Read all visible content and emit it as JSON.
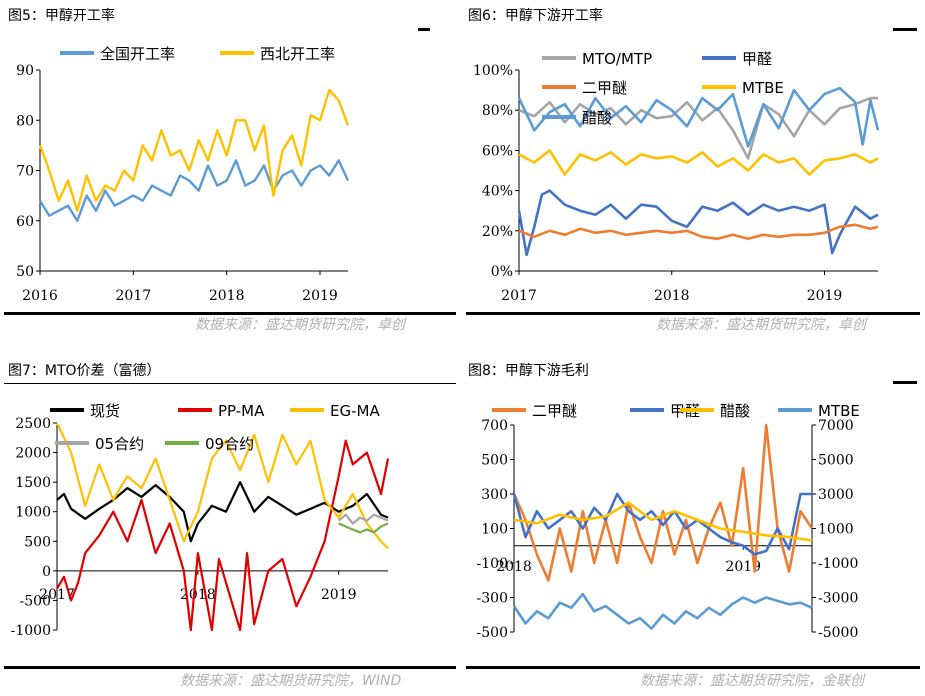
{
  "titles": {
    "fig5": "图5：甲醇开工率",
    "fig6": "图6：甲醇下游开工率",
    "fig7": "图7：MTO价差（富德）",
    "fig8": "图8：甲醇下游毛利"
  },
  "sources": {
    "fig5": "数据来源：盛达期货研究院，卓创",
    "fig6": "数据来源：盛达期货研究院，卓创",
    "fig7": "数据来源：盛达期货研究院，WIND",
    "fig8": "数据来源：盛达期货研究院，金联创"
  },
  "chart_data": [
    {
      "id": "fig5",
      "type": "line",
      "title": "图5：甲醇开工率",
      "x_ticks": [
        "2016",
        "2017",
        "2018",
        "2019"
      ],
      "x_range": [
        2016,
        2019.3
      ],
      "ylim": [
        50,
        90
      ],
      "y_ticks": [
        50,
        60,
        70,
        80,
        90
      ],
      "legend_position": "top",
      "series": [
        {
          "name": "全国开工率",
          "color": "#5b9bd5",
          "x": [
            2016.0,
            2016.1,
            2016.2,
            2016.3,
            2016.4,
            2016.5,
            2016.6,
            2016.7,
            2016.8,
            2016.9,
            2017.0,
            2017.1,
            2017.2,
            2017.3,
            2017.4,
            2017.5,
            2017.6,
            2017.7,
            2017.8,
            2017.9,
            2018.0,
            2018.1,
            2018.2,
            2018.3,
            2018.4,
            2018.5,
            2018.6,
            2018.7,
            2018.8,
            2018.9,
            2019.0,
            2019.1,
            2019.2,
            2019.3
          ],
          "y": [
            64,
            61,
            62,
            63,
            60,
            65,
            62,
            66,
            63,
            64,
            65,
            64,
            67,
            66,
            65,
            69,
            68,
            66,
            71,
            67,
            68,
            72,
            67,
            68,
            71,
            66,
            69,
            70,
            67,
            70,
            71,
            69,
            72,
            68
          ]
        },
        {
          "name": "西北开工率",
          "color": "#ffc000",
          "x": [
            2016.0,
            2016.1,
            2016.2,
            2016.3,
            2016.4,
            2016.5,
            2016.6,
            2016.7,
            2016.8,
            2016.9,
            2017.0,
            2017.1,
            2017.2,
            2017.3,
            2017.4,
            2017.5,
            2017.6,
            2017.7,
            2017.8,
            2017.9,
            2018.0,
            2018.1,
            2018.2,
            2018.3,
            2018.4,
            2018.5,
            2018.6,
            2018.7,
            2018.8,
            2018.9,
            2019.0,
            2019.1,
            2019.2,
            2019.3
          ],
          "y": [
            75,
            70,
            64,
            68,
            62,
            69,
            64,
            67,
            66,
            70,
            68,
            75,
            72,
            78,
            73,
            74,
            70,
            76,
            72,
            78,
            73,
            80,
            80,
            74,
            79,
            65,
            74,
            77,
            71,
            81,
            80,
            86,
            84,
            79
          ]
        }
      ]
    },
    {
      "id": "fig6",
      "type": "line",
      "title": "图6：甲醇下游开工率",
      "x_ticks": [
        "2017",
        "2018",
        "2019"
      ],
      "x_range": [
        2017,
        2019.35
      ],
      "ylim": [
        0,
        100
      ],
      "y_ticks": [
        "0%",
        "20%",
        "40%",
        "60%",
        "80%",
        "100%"
      ],
      "legend_position": "top-left",
      "series": [
        {
          "name": "MTO/MTP",
          "color": "#a5a5a5",
          "x": [
            2017.0,
            2017.1,
            2017.2,
            2017.3,
            2017.4,
            2017.5,
            2017.6,
            2017.7,
            2017.8,
            2017.9,
            2018.0,
            2018.1,
            2018.2,
            2018.3,
            2018.4,
            2018.5,
            2018.6,
            2018.7,
            2018.8,
            2018.9,
            2019.0,
            2019.1,
            2019.2,
            2019.3,
            2019.35
          ],
          "y": [
            80,
            77,
            84,
            74,
            83,
            78,
            81,
            73,
            80,
            76,
            77,
            84,
            75,
            81,
            70,
            56,
            83,
            78,
            67,
            80,
            73,
            81,
            83,
            86,
            86
          ]
        },
        {
          "name": "甲醛",
          "color": "#4472c4",
          "x": [
            2017.0,
            2017.05,
            2017.1,
            2017.15,
            2017.2,
            2017.3,
            2017.4,
            2017.5,
            2017.6,
            2017.7,
            2017.8,
            2017.9,
            2018.0,
            2018.1,
            2018.2,
            2018.3,
            2018.4,
            2018.5,
            2018.6,
            2018.7,
            2018.8,
            2018.9,
            2019.0,
            2019.05,
            2019.1,
            2019.2,
            2019.3,
            2019.35
          ],
          "y": [
            30,
            8,
            22,
            38,
            40,
            33,
            30,
            28,
            33,
            26,
            33,
            32,
            25,
            22,
            32,
            30,
            34,
            28,
            33,
            30,
            32,
            30,
            33,
            9,
            18,
            32,
            26,
            28
          ]
        },
        {
          "name": "二甲醚",
          "color": "#ed7d31",
          "x": [
            2017.0,
            2017.1,
            2017.2,
            2017.3,
            2017.4,
            2017.5,
            2017.6,
            2017.7,
            2017.8,
            2017.9,
            2018.0,
            2018.1,
            2018.2,
            2018.3,
            2018.4,
            2018.5,
            2018.6,
            2018.7,
            2018.8,
            2018.9,
            2019.0,
            2019.1,
            2019.2,
            2019.3,
            2019.35
          ],
          "y": [
            20,
            17,
            20,
            18,
            21,
            19,
            20,
            18,
            19,
            20,
            19,
            20,
            17,
            16,
            18,
            16,
            18,
            17,
            18,
            18,
            19,
            22,
            23,
            21,
            22
          ]
        },
        {
          "name": "MTBE",
          "color": "#ffc000",
          "x": [
            2017.0,
            2017.1,
            2017.2,
            2017.3,
            2017.4,
            2017.5,
            2017.6,
            2017.7,
            2017.8,
            2017.9,
            2018.0,
            2018.1,
            2018.2,
            2018.3,
            2018.4,
            2018.5,
            2018.6,
            2018.7,
            2018.8,
            2018.9,
            2019.0,
            2019.1,
            2019.2,
            2019.3,
            2019.35
          ],
          "y": [
            58,
            54,
            60,
            48,
            58,
            55,
            59,
            53,
            58,
            56,
            57,
            54,
            59,
            52,
            56,
            50,
            58,
            54,
            56,
            48,
            55,
            56,
            58,
            54,
            56
          ]
        },
        {
          "name": "醋酸",
          "color": "#5b9bd5",
          "x": [
            2017.0,
            2017.1,
            2017.2,
            2017.3,
            2017.4,
            2017.5,
            2017.6,
            2017.7,
            2017.8,
            2017.9,
            2018.0,
            2018.1,
            2018.2,
            2018.3,
            2018.4,
            2018.5,
            2018.6,
            2018.7,
            2018.8,
            2018.9,
            2019.0,
            2019.1,
            2019.2,
            2019.25,
            2019.3,
            2019.35
          ],
          "y": [
            86,
            70,
            79,
            83,
            72,
            86,
            76,
            82,
            74,
            85,
            80,
            72,
            86,
            80,
            88,
            62,
            83,
            71,
            90,
            80,
            88,
            91,
            84,
            63,
            85,
            70
          ]
        }
      ]
    },
    {
      "id": "fig7",
      "type": "line",
      "title": "图7：MTO价差（富德）",
      "x_ticks": [
        "2017",
        "2018",
        "2019"
      ],
      "x_range": [
        2017,
        2019.35
      ],
      "ylim": [
        -1000,
        2500
      ],
      "y_ticks": [
        -1000,
        -500,
        0,
        500,
        1000,
        1500,
        2000,
        2500
      ],
      "legend_position": "top-left",
      "series": [
        {
          "name": "现货",
          "color": "#000000",
          "x": [
            2017.0,
            2017.05,
            2017.1,
            2017.2,
            2017.3,
            2017.4,
            2017.5,
            2017.6,
            2017.7,
            2017.8,
            2017.9,
            2017.95,
            2018.0,
            2018.1,
            2018.2,
            2018.3,
            2018.4,
            2018.5,
            2018.6,
            2018.7,
            2018.8,
            2018.9,
            2019.0,
            2019.1,
            2019.2,
            2019.3,
            2019.35
          ],
          "y": [
            1200,
            1300,
            1050,
            880,
            1050,
            1200,
            1400,
            1250,
            1450,
            1250,
            1000,
            500,
            800,
            1100,
            1000,
            1500,
            1000,
            1250,
            1100,
            950,
            1050,
            1150,
            1000,
            1100,
            1300,
            950,
            900
          ]
        },
        {
          "name": "PP-MA",
          "color": "#e00000",
          "x": [
            2017.0,
            2017.05,
            2017.1,
            2017.15,
            2017.2,
            2017.3,
            2017.4,
            2017.5,
            2017.6,
            2017.7,
            2017.8,
            2017.9,
            2017.95,
            2018.0,
            2018.1,
            2018.15,
            2018.2,
            2018.3,
            2018.35,
            2018.4,
            2018.5,
            2018.6,
            2018.7,
            2018.8,
            2018.9,
            2019.0,
            2019.05,
            2019.1,
            2019.2,
            2019.3,
            2019.35
          ],
          "y": [
            -300,
            -100,
            -500,
            -200,
            300,
            600,
            1000,
            500,
            1200,
            300,
            800,
            0,
            -1000,
            300,
            -1000,
            200,
            -200,
            -1000,
            300,
            -900,
            0,
            200,
            -600,
            -100,
            500,
            1600,
            2200,
            1800,
            2000,
            1300,
            1900
          ]
        },
        {
          "name": "EG-MA",
          "color": "#ffc000",
          "x": [
            2017.0,
            2017.1,
            2017.2,
            2017.3,
            2017.4,
            2017.5,
            2017.6,
            2017.7,
            2017.8,
            2017.9,
            2018.0,
            2018.1,
            2018.2,
            2018.3,
            2018.4,
            2018.5,
            2018.6,
            2018.7,
            2018.8,
            2018.9,
            2019.0,
            2019.1,
            2019.2,
            2019.3,
            2019.35
          ],
          "y": [
            2500,
            2000,
            1100,
            1800,
            1200,
            1600,
            1400,
            1900,
            1200,
            500,
            1000,
            1900,
            2200,
            1700,
            2300,
            1500,
            2300,
            1800,
            2200,
            1200,
            900,
            1300,
            800,
            500,
            380
          ]
        },
        {
          "name": "05合约",
          "color": "#a5a5a5",
          "x": [
            2019.0,
            2019.05,
            2019.1,
            2019.15,
            2019.2,
            2019.25,
            2019.3,
            2019.35
          ],
          "y": [
            850,
            950,
            800,
            900,
            850,
            950,
            900,
            850
          ]
        },
        {
          "name": "09合约",
          "color": "#70ad47",
          "x": [
            2019.0,
            2019.05,
            2019.1,
            2019.15,
            2019.2,
            2019.25,
            2019.3,
            2019.35
          ],
          "y": [
            800,
            750,
            700,
            650,
            700,
            650,
            750,
            800
          ]
        }
      ]
    },
    {
      "id": "fig8",
      "type": "line",
      "title": "图8：甲醇下游毛利",
      "x_ticks": [
        "2018",
        "2019"
      ],
      "x_range": [
        2018,
        2019.3
      ],
      "ylim": [
        -500,
        700
      ],
      "y_ticks": [
        -500,
        -300,
        -100,
        100,
        300,
        500,
        700
      ],
      "y2lim": [
        -5000,
        7000
      ],
      "y2_ticks": [
        -5000,
        -3000,
        -1000,
        1000,
        3000,
        5000,
        7000
      ],
      "legend_position": "top",
      "series": [
        {
          "name": "二甲醚",
          "color": "#ed7d31",
          "axis": "left",
          "x": [
            2018.0,
            2018.05,
            2018.1,
            2018.15,
            2018.2,
            2018.25,
            2018.3,
            2018.35,
            2018.4,
            2018.45,
            2018.5,
            2018.55,
            2018.6,
            2018.65,
            2018.7,
            2018.75,
            2018.8,
            2018.85,
            2018.9,
            2018.95,
            2019.0,
            2019.05,
            2019.1,
            2019.15,
            2019.2,
            2019.25,
            2019.3
          ],
          "y": [
            300,
            150,
            -50,
            -200,
            100,
            -150,
            200,
            -100,
            150,
            -100,
            250,
            50,
            -100,
            200,
            -50,
            150,
            -100,
            100,
            250,
            0,
            450,
            -150,
            700,
            100,
            -150,
            200,
            100
          ]
        },
        {
          "name": "甲醛",
          "color": "#4472c4",
          "axis": "left",
          "x": [
            2018.0,
            2018.05,
            2018.1,
            2018.15,
            2018.2,
            2018.25,
            2018.3,
            2018.35,
            2018.4,
            2018.45,
            2018.5,
            2018.55,
            2018.6,
            2018.65,
            2018.7,
            2018.75,
            2018.8,
            2018.85,
            2018.9,
            2018.95,
            2019.0,
            2019.05,
            2019.1,
            2019.15,
            2019.2,
            2019.25,
            2019.3
          ],
          "y": [
            300,
            50,
            200,
            100,
            150,
            200,
            100,
            220,
            150,
            300,
            200,
            150,
            200,
            120,
            200,
            100,
            150,
            100,
            50,
            20,
            0,
            -50,
            -30,
            100,
            -20,
            300,
            300
          ]
        },
        {
          "name": "醋酸",
          "color": "#ffc000",
          "axis": "right",
          "x": [
            2018.0,
            2018.1,
            2018.2,
            2018.3,
            2018.4,
            2018.5,
            2018.6,
            2018.7,
            2018.8,
            2018.9,
            2019.0,
            2019.1,
            2019.2,
            2019.3
          ],
          "y": [
            1500,
            1300,
            1800,
            1500,
            1700,
            2500,
            1500,
            2000,
            1500,
            1000,
            800,
            600,
            500,
            300
          ]
        },
        {
          "name": "MTBE",
          "color": "#5b9bd5",
          "axis": "right",
          "x": [
            2018.0,
            2018.05,
            2018.1,
            2018.15,
            2018.2,
            2018.25,
            2018.3,
            2018.35,
            2018.4,
            2018.45,
            2018.5,
            2018.55,
            2018.6,
            2018.65,
            2018.7,
            2018.75,
            2018.8,
            2018.85,
            2018.9,
            2018.95,
            2019.0,
            2019.05,
            2019.1,
            2019.15,
            2019.2,
            2019.25,
            2019.3
          ],
          "y": [
            -3500,
            -4500,
            -3800,
            -4200,
            -3300,
            -3600,
            -2800,
            -3800,
            -3500,
            -4000,
            -4500,
            -4200,
            -4800,
            -4000,
            -4500,
            -3800,
            -4200,
            -3600,
            -4000,
            -3400,
            -3000,
            -3300,
            -3000,
            -3200,
            -3400,
            -3300,
            -3600
          ]
        }
      ]
    }
  ]
}
